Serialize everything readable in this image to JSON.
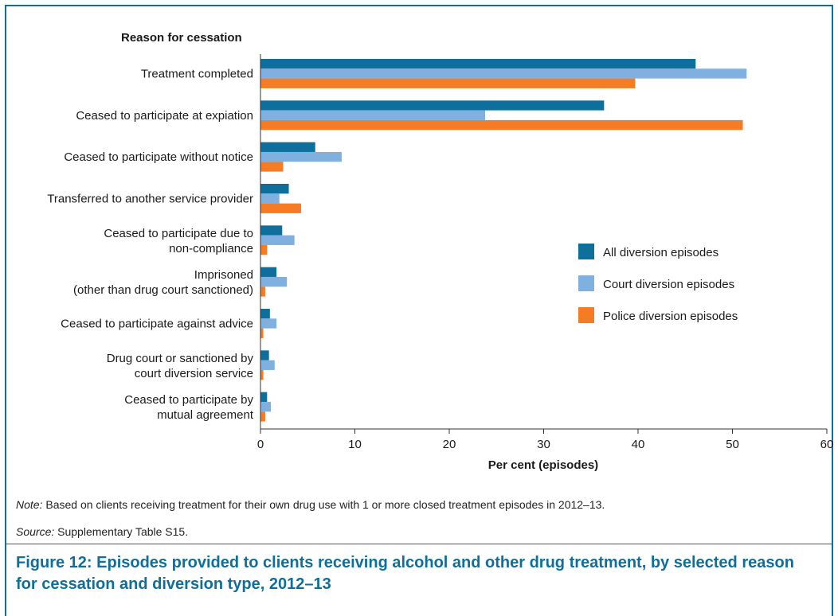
{
  "chart_data": {
    "type": "bar",
    "orientation": "horizontal",
    "category_axis_title": "Reason for cessation",
    "xlabel": "Per cent (episodes)",
    "xlim": [
      0,
      60
    ],
    "xticks": [
      0,
      10,
      20,
      30,
      40,
      50,
      60
    ],
    "categories": [
      [
        "Treatment completed"
      ],
      [
        "Ceased to participate at expiation"
      ],
      [
        "Ceased to participate without notice"
      ],
      [
        "Transferred to another service provider"
      ],
      [
        "Ceased to participate due to",
        "non-compliance"
      ],
      [
        "Imprisoned",
        "(other than drug court sanctioned)"
      ],
      [
        "Ceased to participate against advice"
      ],
      [
        "Drug court or sanctioned by",
        "court diversion service"
      ],
      [
        "Ceased to participate by",
        "mutual agreement"
      ]
    ],
    "series": [
      {
        "name": "All diversion episodes",
        "color": "#0e6e9c",
        "values": [
          46.1,
          36.4,
          5.8,
          3.0,
          2.3,
          1.7,
          1.0,
          0.9,
          0.7
        ]
      },
      {
        "name": "Court diversion episodes",
        "color": "#7fb0e0",
        "values": [
          51.5,
          23.8,
          8.6,
          2.0,
          3.6,
          2.8,
          1.7,
          1.5,
          1.1
        ]
      },
      {
        "name": "Police diversion episodes",
        "color": "#f57b25",
        "values": [
          39.7,
          51.1,
          2.4,
          4.3,
          0.7,
          0.5,
          0.3,
          0.3,
          0.5
        ]
      }
    ],
    "legend_position": "right",
    "grid": false
  },
  "note": {
    "label": "Note:",
    "text": " Based on clients receiving treatment for their own drug use with 1 or more closed treatment episodes in 2012–13."
  },
  "source": {
    "label": "Source:",
    "text": " Supplementary Table S15."
  },
  "caption": "Figure 12: Episodes provided to clients receiving alcohol and other drug treatment, by selected reason for cessation and diversion type, 2012–13"
}
